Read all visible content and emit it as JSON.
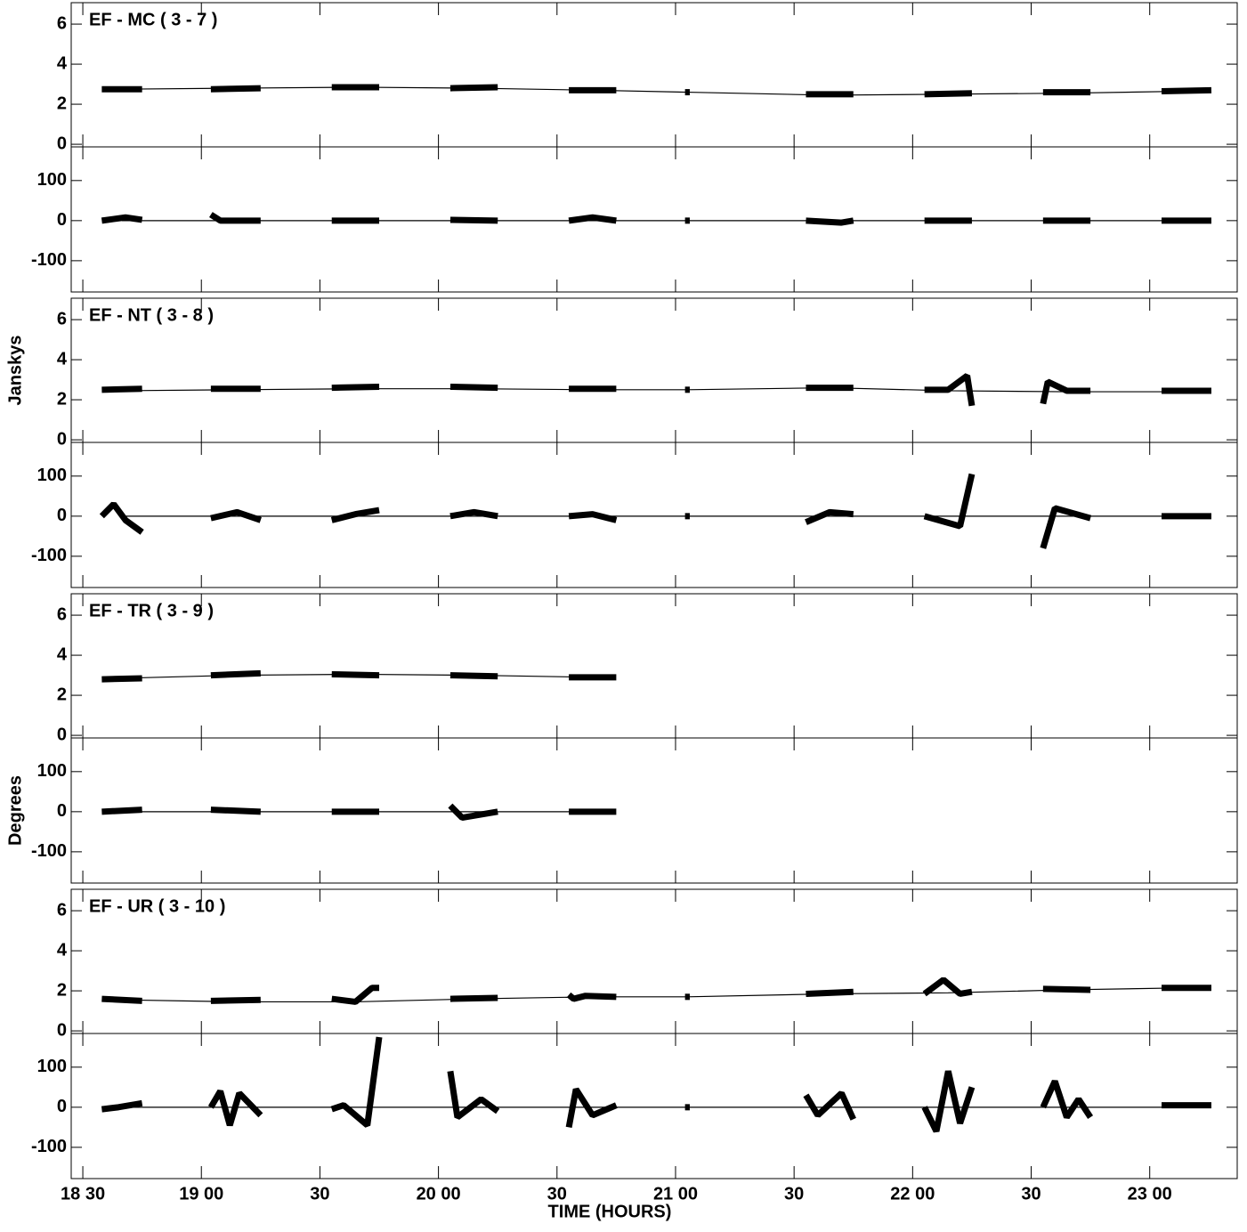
{
  "chart_data": [
    {
      "type": "line",
      "title": "EF - MC ( 3 - 7 )",
      "color": "#000000",
      "xlim": [
        18.451,
        23.369
      ],
      "xticks": [
        18.5,
        19,
        19.5,
        20,
        20.5,
        21,
        21.5,
        22,
        22.5,
        23
      ],
      "ylim": [
        -0.13,
        7.07
      ],
      "yticks": [
        0,
        2,
        4,
        6
      ],
      "scans": [
        {
          "x": [
            18.58,
            18.75
          ],
          "values": [
            2.75,
            2.75
          ]
        },
        {
          "x": [
            19.04,
            19.25
          ],
          "values": [
            2.75,
            2.8
          ]
        },
        {
          "x": [
            19.55,
            19.75
          ],
          "values": [
            2.85,
            2.85
          ]
        },
        {
          "x": [
            20.05,
            20.25
          ],
          "values": [
            2.8,
            2.85
          ]
        },
        {
          "x": [
            20.55,
            20.75
          ],
          "values": [
            2.7,
            2.7
          ]
        },
        {
          "x": [
            21.04,
            21.06
          ],
          "values": [
            2.6,
            2.6
          ]
        },
        {
          "x": [
            21.55,
            21.75
          ],
          "values": [
            2.5,
            2.5
          ]
        },
        {
          "x": [
            22.05,
            22.25
          ],
          "values": [
            2.5,
            2.55
          ]
        },
        {
          "x": [
            22.55,
            22.75
          ],
          "values": [
            2.6,
            2.6
          ]
        },
        {
          "x": [
            23.05,
            23.26
          ],
          "values": [
            2.65,
            2.7
          ]
        }
      ],
      "model": {
        "x": [
          18.665,
          19.145,
          19.65,
          20.15,
          20.65,
          21.05,
          21.65,
          22.15,
          22.65,
          23.155
        ],
        "values": [
          2.75,
          2.8,
          2.85,
          2.8,
          2.7,
          2.6,
          2.45,
          2.5,
          2.55,
          2.65
        ]
      }
    },
    {
      "type": "line",
      "color": "#000000",
      "xlim": [
        18.451,
        23.369
      ],
      "xticks": [
        18.5,
        19,
        19.5,
        20,
        20.5,
        21,
        21.5,
        22,
        22.5,
        23
      ],
      "ylim": [
        -178,
        184
      ],
      "yticks": [
        -100,
        0,
        100
      ],
      "scans": [
        {
          "x": [
            18.58,
            18.68,
            18.75
          ],
          "values": [
            0,
            8,
            2
          ]
        },
        {
          "x": [
            19.04,
            19.08,
            19.25
          ],
          "values": [
            15,
            0,
            0
          ]
        },
        {
          "x": [
            19.55,
            19.75
          ],
          "values": [
            0,
            0
          ]
        },
        {
          "x": [
            20.05,
            20.25
          ],
          "values": [
            2,
            0
          ]
        },
        {
          "x": [
            20.55,
            20.65,
            20.75
          ],
          "values": [
            0,
            8,
            0
          ]
        },
        {
          "x": [
            21.04,
            21.06
          ],
          "values": [
            0,
            0
          ]
        },
        {
          "x": [
            21.55,
            21.7,
            21.75
          ],
          "values": [
            0,
            -5,
            0
          ]
        },
        {
          "x": [
            22.05,
            22.25
          ],
          "values": [
            0,
            0
          ]
        },
        {
          "x": [
            22.55,
            22.75
          ],
          "values": [
            0,
            0
          ]
        },
        {
          "x": [
            23.05,
            23.26
          ],
          "values": [
            0,
            0
          ]
        }
      ],
      "model": {
        "x": [
          18.665,
          19.145,
          19.65,
          20.15,
          20.65,
          21.05,
          21.65,
          22.15,
          22.65,
          23.155
        ],
        "values": [
          0,
          0,
          0,
          0,
          0,
          0,
          0,
          0,
          0,
          0
        ]
      }
    },
    {
      "type": "line",
      "title": "EF - NT ( 3 - 8 )",
      "ylabel": "Janskys",
      "color": "#000000",
      "xlim": [
        18.451,
        23.369
      ],
      "xticks": [
        18.5,
        19,
        19.5,
        20,
        20.5,
        21,
        21.5,
        22,
        22.5,
        23
      ],
      "ylim": [
        -0.13,
        7.07
      ],
      "yticks": [
        0,
        2,
        4,
        6
      ],
      "scans": [
        {
          "x": [
            18.58,
            18.75
          ],
          "values": [
            2.5,
            2.55
          ]
        },
        {
          "x": [
            19.04,
            19.25
          ],
          "values": [
            2.55,
            2.55
          ]
        },
        {
          "x": [
            19.55,
            19.75
          ],
          "values": [
            2.6,
            2.65
          ]
        },
        {
          "x": [
            20.05,
            20.25
          ],
          "values": [
            2.65,
            2.6
          ]
        },
        {
          "x": [
            20.55,
            20.75
          ],
          "values": [
            2.55,
            2.55
          ]
        },
        {
          "x": [
            21.04,
            21.06
          ],
          "values": [
            2.5,
            2.5
          ]
        },
        {
          "x": [
            21.55,
            21.75
          ],
          "values": [
            2.6,
            2.6
          ]
        },
        {
          "x": [
            22.05,
            22.15,
            22.23,
            22.25
          ],
          "values": [
            2.5,
            2.5,
            3.2,
            1.7
          ]
        },
        {
          "x": [
            22.55,
            22.57,
            22.65,
            22.75
          ],
          "values": [
            1.8,
            2.9,
            2.45,
            2.45
          ]
        },
        {
          "x": [
            23.05,
            23.26
          ],
          "values": [
            2.45,
            2.45
          ]
        }
      ],
      "model": {
        "x": [
          18.665,
          19.145,
          19.65,
          20.15,
          20.65,
          21.05,
          21.65,
          22.15,
          22.65,
          23.155
        ],
        "values": [
          2.45,
          2.5,
          2.55,
          2.55,
          2.5,
          2.5,
          2.6,
          2.45,
          2.4,
          2.4
        ]
      }
    },
    {
      "type": "line",
      "color": "#000000",
      "xlim": [
        18.451,
        23.369
      ],
      "xticks": [
        18.5,
        19,
        19.5,
        20,
        20.5,
        21,
        21.5,
        22,
        22.5,
        23
      ],
      "ylim": [
        -178,
        184
      ],
      "yticks": [
        -100,
        0,
        100
      ],
      "scans": [
        {
          "x": [
            18.58,
            18.63,
            18.68,
            18.75
          ],
          "values": [
            0,
            30,
            -10,
            -40
          ]
        },
        {
          "x": [
            19.04,
            19.15,
            19.25
          ],
          "values": [
            -5,
            10,
            -10
          ]
        },
        {
          "x": [
            19.55,
            19.65,
            19.75
          ],
          "values": [
            -10,
            5,
            15
          ]
        },
        {
          "x": [
            20.05,
            20.15,
            20.25
          ],
          "values": [
            0,
            10,
            0
          ]
        },
        {
          "x": [
            20.55,
            20.65,
            20.75
          ],
          "values": [
            0,
            5,
            -10
          ]
        },
        {
          "x": [
            21.04,
            21.06
          ],
          "values": [
            0,
            0
          ]
        },
        {
          "x": [
            21.55,
            21.65,
            21.75
          ],
          "values": [
            -15,
            10,
            5
          ]
        },
        {
          "x": [
            22.05,
            22.2,
            22.25
          ],
          "values": [
            0,
            -25,
            105
          ]
        },
        {
          "x": [
            22.55,
            22.6,
            22.75
          ],
          "values": [
            -80,
            20,
            -5
          ]
        },
        {
          "x": [
            23.05,
            23.26
          ],
          "values": [
            0,
            0
          ]
        }
      ],
      "model": {
        "x": [
          18.665,
          19.145,
          19.65,
          20.15,
          20.65,
          21.05,
          21.65,
          22.15,
          22.65,
          23.155
        ],
        "values": [
          0,
          0,
          0,
          0,
          0,
          0,
          0,
          0,
          0,
          0
        ]
      }
    },
    {
      "type": "line",
      "title": "EF - TR ( 3 - 9 )",
      "color": "#000000",
      "xlim": [
        18.451,
        23.369
      ],
      "xticks": [
        18.5,
        19,
        19.5,
        20,
        20.5,
        21,
        21.5,
        22,
        22.5,
        23
      ],
      "ylim": [
        -0.13,
        7.07
      ],
      "yticks": [
        0,
        2,
        4,
        6
      ],
      "scans": [
        {
          "x": [
            18.58,
            18.75
          ],
          "values": [
            2.8,
            2.85
          ]
        },
        {
          "x": [
            19.04,
            19.25
          ],
          "values": [
            3.0,
            3.1
          ]
        },
        {
          "x": [
            19.55,
            19.75
          ],
          "values": [
            3.05,
            3.0
          ]
        },
        {
          "x": [
            20.05,
            20.25
          ],
          "values": [
            3.0,
            2.95
          ]
        },
        {
          "x": [
            20.55,
            20.75
          ],
          "values": [
            2.9,
            2.9
          ]
        }
      ],
      "model": {
        "x": [
          18.665,
          19.145,
          19.65,
          20.15,
          20.65
        ],
        "values": [
          2.85,
          3.0,
          3.05,
          3.0,
          2.9
        ]
      }
    },
    {
      "type": "line",
      "ylabel": "Degrees",
      "color": "#000000",
      "xlim": [
        18.451,
        23.369
      ],
      "xticks": [
        18.5,
        19,
        19.5,
        20,
        20.5,
        21,
        21.5,
        22,
        22.5,
        23
      ],
      "ylim": [
        -178,
        184
      ],
      "yticks": [
        -100,
        0,
        100
      ],
      "scans": [
        {
          "x": [
            18.58,
            18.75
          ],
          "values": [
            0,
            5
          ]
        },
        {
          "x": [
            19.04,
            19.25
          ],
          "values": [
            5,
            0
          ]
        },
        {
          "x": [
            19.55,
            19.75
          ],
          "values": [
            0,
            0
          ]
        },
        {
          "x": [
            20.05,
            20.1,
            20.25
          ],
          "values": [
            15,
            -15,
            0
          ]
        },
        {
          "x": [
            20.55,
            20.75
          ],
          "values": [
            0,
            0
          ]
        }
      ],
      "model": {
        "x": [
          18.665,
          19.145,
          19.65,
          20.15,
          20.65
        ],
        "values": [
          0,
          0,
          0,
          0,
          0
        ]
      }
    },
    {
      "type": "line",
      "title": "EF - UR ( 3 - 10 )",
      "color": "#000000",
      "xlim": [
        18.451,
        23.369
      ],
      "xticks": [
        18.5,
        19,
        19.5,
        20,
        20.5,
        21,
        21.5,
        22,
        22.5,
        23
      ],
      "ylim": [
        -0.13,
        7.07
      ],
      "yticks": [
        0,
        2,
        4,
        6
      ],
      "scans": [
        {
          "x": [
            18.58,
            18.75
          ],
          "values": [
            1.6,
            1.5
          ]
        },
        {
          "x": [
            19.04,
            19.25
          ],
          "values": [
            1.5,
            1.55
          ]
        },
        {
          "x": [
            19.55,
            19.65,
            19.72,
            19.75
          ],
          "values": [
            1.6,
            1.45,
            2.15,
            2.15
          ]
        },
        {
          "x": [
            20.05,
            20.25
          ],
          "values": [
            1.6,
            1.65
          ]
        },
        {
          "x": [
            20.55,
            20.57,
            20.62,
            20.75
          ],
          "values": [
            1.8,
            1.6,
            1.75,
            1.7
          ]
        },
        {
          "x": [
            21.04,
            21.06
          ],
          "values": [
            1.7,
            1.7
          ]
        },
        {
          "x": [
            21.55,
            21.75
          ],
          "values": [
            1.85,
            1.95
          ]
        },
        {
          "x": [
            22.05,
            22.13,
            22.2,
            22.25
          ],
          "values": [
            1.85,
            2.55,
            1.85,
            1.95
          ]
        },
        {
          "x": [
            22.55,
            22.75
          ],
          "values": [
            2.1,
            2.05
          ]
        },
        {
          "x": [
            23.05,
            23.26
          ],
          "values": [
            2.15,
            2.15
          ]
        }
      ],
      "model": {
        "x": [
          18.665,
          19.145,
          19.65,
          20.15,
          20.65,
          21.05,
          21.65,
          22.15,
          22.65,
          23.155
        ],
        "values": [
          1.55,
          1.45,
          1.45,
          1.6,
          1.7,
          1.7,
          1.85,
          1.9,
          2.05,
          2.15
        ]
      }
    },
    {
      "type": "line",
      "xlabel": "TIME (HOURS)",
      "color": "#000000",
      "xlim": [
        18.451,
        23.369
      ],
      "xticks": [
        {
          "value": 18.5,
          "label": "18 30"
        },
        {
          "value": 19,
          "label": "19 00"
        },
        {
          "value": 19.5,
          "label": "30"
        },
        {
          "value": 20,
          "label": "20 00"
        },
        {
          "value": 20.5,
          "label": "30"
        },
        {
          "value": 21,
          "label": "21 00"
        },
        {
          "value": 21.5,
          "label": "30"
        },
        {
          "value": 22,
          "label": "22 00"
        },
        {
          "value": 22.5,
          "label": "30"
        },
        {
          "value": 23,
          "label": "23 00"
        }
      ],
      "ylim": [
        -178,
        184
      ],
      "yticks": [
        -100,
        0,
        100
      ],
      "scans": [
        {
          "x": [
            18.58,
            18.65,
            18.75
          ],
          "values": [
            -5,
            0,
            10
          ]
        },
        {
          "x": [
            19.04,
            19.08,
            19.12,
            19.16,
            19.25
          ],
          "values": [
            0,
            40,
            -45,
            35,
            -20
          ]
        },
        {
          "x": [
            19.55,
            19.6,
            19.7,
            19.75
          ],
          "values": [
            -5,
            5,
            -45,
            175
          ]
        },
        {
          "x": [
            20.05,
            20.08,
            20.18,
            20.25
          ],
          "values": [
            90,
            -25,
            20,
            -10
          ]
        },
        {
          "x": [
            20.55,
            20.58,
            20.65,
            20.75
          ],
          "values": [
            -50,
            45,
            -20,
            5
          ]
        },
        {
          "x": [
            21.04,
            21.06
          ],
          "values": [
            0,
            0
          ]
        },
        {
          "x": [
            21.55,
            21.6,
            21.7,
            21.75
          ],
          "values": [
            30,
            -20,
            35,
            -30
          ]
        },
        {
          "x": [
            22.05,
            22.1,
            22.15,
            22.2,
            22.25
          ],
          "values": [
            0,
            -60,
            90,
            -40,
            50
          ]
        },
        {
          "x": [
            22.55,
            22.6,
            22.65,
            22.7,
            22.75
          ],
          "values": [
            0,
            65,
            -25,
            20,
            -25
          ]
        },
        {
          "x": [
            23.05,
            23.26
          ],
          "values": [
            5,
            5
          ]
        }
      ],
      "model": {
        "x": [
          18.665,
          19.145,
          19.65,
          20.15,
          20.65,
          21.05,
          21.65,
          22.15,
          22.65,
          23.155
        ],
        "values": [
          0,
          0,
          0,
          0,
          0,
          0,
          0,
          0,
          0,
          0
        ]
      }
    }
  ]
}
